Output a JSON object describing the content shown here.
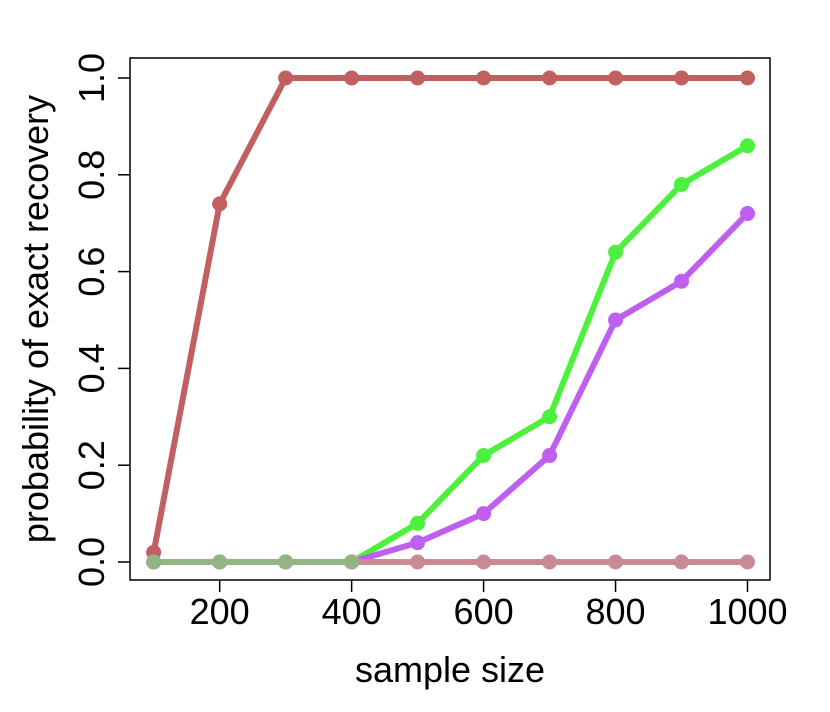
{
  "chart_data": {
    "type": "line",
    "title": "",
    "xlabel": "sample size",
    "ylabel": "probability of exact recovery",
    "xlim": [
      100,
      1000
    ],
    "ylim": [
      0,
      1
    ],
    "x_ticks": [
      200,
      400,
      600,
      800,
      1000
    ],
    "x_tick_labels": [
      "200",
      "400",
      "600",
      "800",
      "1000"
    ],
    "y_ticks": [
      0,
      0.2,
      0.4,
      0.6,
      0.8,
      1.0
    ],
    "y_tick_labels": [
      "0.0",
      "0.2",
      "0.4",
      "0.6",
      "0.8",
      "1.0"
    ],
    "grid": false,
    "legend": "none",
    "x": [
      100,
      200,
      300,
      400,
      500,
      600,
      700,
      800,
      900,
      1000
    ],
    "series": [
      {
        "color": "#c06060",
        "values": [
          0.02,
          0.74,
          1.0,
          1.0,
          1.0,
          1.0,
          1.0,
          1.0,
          1.0,
          1.0
        ]
      },
      {
        "color": "#4df03c",
        "values": [
          0.0,
          0.0,
          0.0,
          0.0,
          0.08,
          0.22,
          0.3,
          0.64,
          0.78,
          0.86
        ]
      },
      {
        "color": "#bf5ff0",
        "values": [
          0.0,
          0.0,
          0.0,
          0.0,
          0.04,
          0.1,
          0.22,
          0.5,
          0.58,
          0.72
        ]
      },
      {
        "color": "#c98a95",
        "values": [
          0.0,
          0.0,
          0.0,
          0.0,
          0.0,
          0.0,
          0.0,
          0.0,
          0.0,
          0.0
        ]
      },
      {
        "color": "#93b585",
        "values": [
          0.0,
          0.0,
          0.0,
          0.0,
          null,
          null,
          null,
          null,
          null,
          null
        ]
      }
    ]
  }
}
